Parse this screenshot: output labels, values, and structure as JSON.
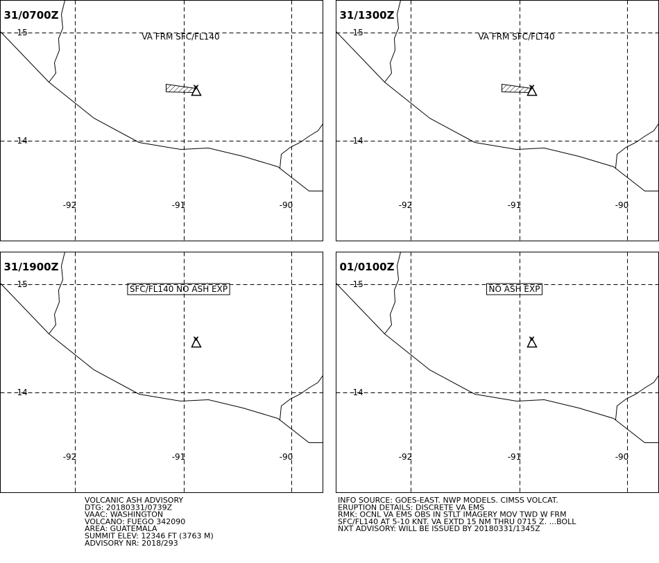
{
  "panels": [
    {
      "time": "31/0700Z",
      "annotation": "VA FRM SFC/FL140",
      "lat_labels": [
        "15",
        "14"
      ],
      "lon_labels": [
        "-92",
        "-91",
        "-90"
      ]
    },
    {
      "time": "31/1300Z",
      "annotation": "VA FRM SFC/FLT40",
      "lat_labels": [
        "15",
        "14"
      ],
      "lon_labels": [
        "-92",
        "-91",
        "-90"
      ]
    },
    {
      "time": "31/1900Z",
      "annotation": "SFC/FL140 NO ASH EXP",
      "lat_labels": [
        "15",
        "14"
      ],
      "lon_labels": [
        "-92",
        "-91",
        "-90"
      ]
    },
    {
      "time": "01/0100Z",
      "annotation": "NO ASH EXP",
      "lat_labels": [
        "15",
        "14"
      ],
      "lon_labels": [
        "-92",
        "-91",
        "-90"
      ]
    }
  ],
  "footer": {
    "left": [
      "VOLCANIC ASH ADVISORY",
      "DTG: 20180331/0739Z",
      "VAAC: WASHINGTON",
      "VOLCANO: FUEGO 342090",
      "AREA: GUATEMALA",
      "SUMMIT ELEV: 12346 FT (3763 M)",
      "ADVISORY NR: 2018/293"
    ],
    "right": [
      "INFO SOURCE: GOES-EAST. NWP MODELS. CIMSS VOLCAT.",
      "ERUPTION DETAILS: DISCRETE VA EMS",
      "RMK: OCNL VA EMS OBS IN STLT IMAGERY MOV TWD W FRM",
      "SFC/FL140 AT 5-10 KNT. VA EXTD 15 NM THRU 0715 Z. ...BOLL",
      "NXT ADVISORY: WILL BE ISSUED BY 20180331/1345Z"
    ]
  }
}
